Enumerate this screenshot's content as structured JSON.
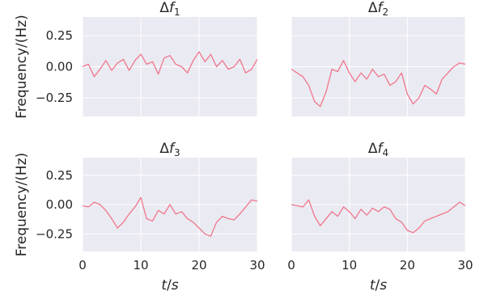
{
  "chart_data": [
    {
      "type": "line",
      "title": "Δf",
      "title_sub": "1",
      "xlabel": "",
      "ylabel": "Frequency/(Hz)",
      "xlim": [
        0,
        30
      ],
      "ylim": [
        -0.4,
        0.4
      ],
      "xticks": [
        0,
        10,
        20,
        30
      ],
      "yticks": [
        -0.25,
        0.0,
        0.25
      ],
      "ytick_labels": [
        "−0.25",
        "0.00",
        "0.25"
      ],
      "grid": true,
      "color": "#f0768b",
      "x": [
        0,
        1,
        2,
        3,
        4,
        5,
        6,
        7,
        8,
        9,
        10,
        11,
        12,
        13,
        14,
        15,
        16,
        17,
        18,
        19,
        20,
        21,
        22,
        23,
        24,
        25,
        26,
        27,
        28,
        29,
        30
      ],
      "y": [
        0.0,
        0.02,
        -0.08,
        -0.02,
        0.05,
        -0.03,
        0.03,
        0.06,
        -0.03,
        0.05,
        0.1,
        0.02,
        0.04,
        -0.06,
        0.07,
        0.09,
        0.02,
        0.0,
        -0.05,
        0.05,
        0.12,
        0.04,
        0.1,
        0.0,
        0.05,
        -0.02,
        0.0,
        0.06,
        -0.05,
        -0.02,
        0.06
      ]
    },
    {
      "type": "line",
      "title": "Δf",
      "title_sub": "2",
      "xlabel": "",
      "ylabel": "",
      "xlim": [
        0,
        30
      ],
      "ylim": [
        -0.4,
        0.4
      ],
      "xticks": [
        0,
        10,
        20,
        30
      ],
      "yticks": [
        -0.25,
        0.0,
        0.25
      ],
      "grid": true,
      "color": "#f0768b",
      "x": [
        0,
        1,
        2,
        3,
        4,
        5,
        6,
        7,
        8,
        9,
        10,
        11,
        12,
        13,
        14,
        15,
        16,
        17,
        18,
        19,
        20,
        21,
        22,
        23,
        24,
        25,
        26,
        27,
        28,
        29,
        30
      ],
      "y": [
        -0.02,
        -0.05,
        -0.08,
        -0.15,
        -0.28,
        -0.32,
        -0.2,
        -0.02,
        -0.04,
        0.05,
        -0.05,
        -0.12,
        -0.05,
        -0.1,
        -0.02,
        -0.08,
        -0.06,
        -0.15,
        -0.12,
        -0.05,
        -0.22,
        -0.3,
        -0.25,
        -0.15,
        -0.18,
        -0.22,
        -0.1,
        -0.05,
        0.0,
        0.03,
        0.02
      ]
    },
    {
      "type": "line",
      "title": "Δf",
      "title_sub": "3",
      "xlabel": "t/s",
      "ylabel": "Frequency/(Hz)",
      "xlim": [
        0,
        30
      ],
      "ylim": [
        -0.4,
        0.4
      ],
      "xticks": [
        0,
        10,
        20,
        30
      ],
      "yticks": [
        -0.25,
        0.0,
        0.25
      ],
      "xtick_labels": [
        "0",
        "10",
        "20",
        "30"
      ],
      "ytick_labels": [
        "−0.25",
        "0.00",
        "0.25"
      ],
      "grid": true,
      "color": "#f0768b",
      "x": [
        0,
        1,
        2,
        3,
        4,
        5,
        6,
        7,
        8,
        9,
        10,
        11,
        12,
        13,
        14,
        15,
        16,
        17,
        18,
        19,
        20,
        21,
        22,
        23,
        24,
        25,
        26,
        27,
        28,
        29,
        30
      ],
      "y": [
        -0.01,
        -0.02,
        0.02,
        0.0,
        -0.05,
        -0.12,
        -0.2,
        -0.15,
        -0.08,
        -0.02,
        0.06,
        -0.12,
        -0.14,
        -0.05,
        -0.08,
        0.0,
        -0.08,
        -0.06,
        -0.12,
        -0.15,
        -0.2,
        -0.25,
        -0.27,
        -0.15,
        -0.1,
        -0.12,
        -0.13,
        -0.08,
        -0.02,
        0.04,
        0.03
      ]
    },
    {
      "type": "line",
      "title": "Δf",
      "title_sub": "4",
      "xlabel": "t/s",
      "ylabel": "",
      "xlim": [
        0,
        30
      ],
      "ylim": [
        -0.4,
        0.4
      ],
      "xticks": [
        0,
        10,
        20,
        30
      ],
      "yticks": [
        -0.25,
        0.0,
        0.25
      ],
      "xtick_labels": [
        "0",
        "10",
        "20",
        "30"
      ],
      "grid": true,
      "color": "#f0768b",
      "x": [
        0,
        1,
        2,
        3,
        4,
        5,
        6,
        7,
        8,
        9,
        10,
        11,
        12,
        13,
        14,
        15,
        16,
        17,
        18,
        19,
        20,
        21,
        22,
        23,
        24,
        25,
        26,
        27,
        28,
        29,
        30
      ],
      "y": [
        0.0,
        -0.01,
        -0.02,
        0.04,
        -0.1,
        -0.18,
        -0.12,
        -0.06,
        -0.1,
        -0.02,
        -0.06,
        -0.12,
        -0.04,
        -0.09,
        -0.03,
        -0.06,
        -0.02,
        -0.04,
        -0.12,
        -0.15,
        -0.22,
        -0.24,
        -0.2,
        -0.14,
        -0.12,
        -0.1,
        -0.08,
        -0.06,
        -0.02,
        0.02,
        -0.01
      ]
    }
  ]
}
